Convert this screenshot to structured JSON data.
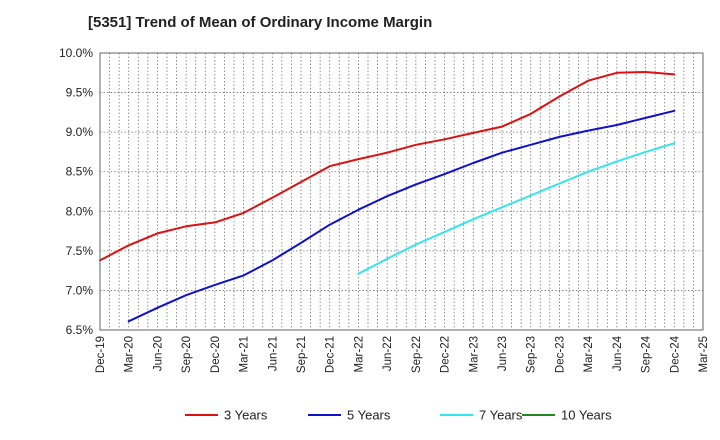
{
  "chart_data": {
    "type": "line",
    "title": "[5351]  Trend of Mean of Ordinary Income Margin",
    "x": [
      "Dec-19",
      "Mar-20",
      "Jun-20",
      "Sep-20",
      "Dec-20",
      "Mar-21",
      "Jun-21",
      "Sep-21",
      "Dec-21",
      "Mar-22",
      "Jun-22",
      "Sep-22",
      "Dec-22",
      "Mar-23",
      "Jun-23",
      "Sep-23",
      "Dec-23",
      "Mar-24",
      "Jun-24",
      "Sep-24",
      "Dec-24",
      "Mar-25"
    ],
    "ylim": [
      6.5,
      10.0
    ],
    "yticks": [
      "10.0%",
      "9.5%",
      "9.0%",
      "8.5%",
      "8.0%",
      "7.5%",
      "7.0%",
      "6.5%"
    ],
    "grid": true,
    "legend_position": "bottom",
    "series": [
      {
        "name": "3 Years",
        "color": "#dd1111",
        "values": [
          7.38,
          7.57,
          7.72,
          7.81,
          7.86,
          7.98,
          8.17,
          8.37,
          8.57,
          8.66,
          8.74,
          8.84,
          8.91,
          8.99,
          9.07,
          9.23,
          9.45,
          9.65,
          9.75,
          9.76,
          9.73,
          null
        ]
      },
      {
        "name": "5 Years",
        "color": "#1111cc",
        "values": [
          null,
          6.61,
          6.78,
          6.94,
          7.07,
          7.19,
          7.38,
          7.6,
          7.83,
          8.02,
          8.19,
          8.34,
          8.47,
          8.61,
          8.74,
          8.84,
          8.94,
          9.02,
          9.09,
          9.18,
          9.27,
          null
        ]
      },
      {
        "name": "7 Years",
        "color": "#33e5ee",
        "values": [
          null,
          null,
          null,
          null,
          null,
          null,
          null,
          null,
          null,
          7.21,
          7.4,
          7.58,
          7.74,
          7.9,
          8.05,
          8.2,
          8.35,
          8.5,
          8.63,
          8.75,
          8.86,
          null
        ]
      },
      {
        "name": "10 Years",
        "color": "#228822",
        "values": [
          null,
          null,
          null,
          null,
          null,
          null,
          null,
          null,
          null,
          null,
          null,
          null,
          null,
          null,
          null,
          null,
          null,
          null,
          null,
          null,
          null,
          null
        ]
      }
    ]
  }
}
